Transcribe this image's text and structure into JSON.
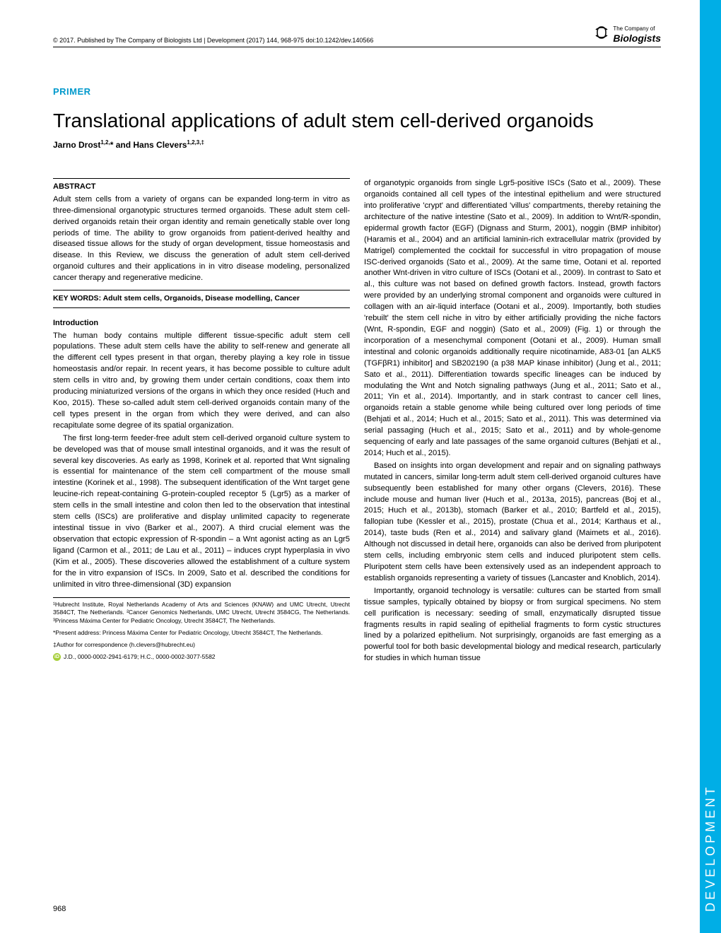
{
  "meta": {
    "copyright": "© 2017. Published by The Company of Biologists Ltd | Development (2017) 144, 968-975 doi:10.1242/dev.140566",
    "logo_small": "The Company of",
    "logo_big": "Biologists",
    "section_label": "PRIMER",
    "title": "Translational applications of adult stem cell-derived organoids",
    "authors_html": "Jarno Drost<sup>1,2,</sup>* and Hans Clevers<sup>1,2,3,‡</sup>",
    "page_number": "968",
    "sidebar_label": "DEVELOPMENT",
    "colors": {
      "accent": "#0099cc",
      "sidebar": "#00aee6",
      "orcid": "#a6ce39"
    }
  },
  "abstract": {
    "heading": "ABSTRACT",
    "body": "Adult stem cells from a variety of organs can be expanded long-term in vitro as three-dimensional organotypic structures termed organoids. These adult stem cell-derived organoids retain their organ identity and remain genetically stable over long periods of time. The ability to grow organoids from patient-derived healthy and diseased tissue allows for the study of organ development, tissue homeostasis and disease. In this Review, we discuss the generation of adult stem cell-derived organoid cultures and their applications in in vitro disease modeling, personalized cancer therapy and regenerative medicine.",
    "keywords_label": "KEY WORDS: Adult stem cells, Organoids, Disease modelling, Cancer"
  },
  "introduction": {
    "heading": "Introduction",
    "p1": "The human body contains multiple different tissue-specific adult stem cell populations. These adult stem cells have the ability to self-renew and generate all the different cell types present in that organ, thereby playing a key role in tissue homeostasis and/or repair. In recent years, it has become possible to culture adult stem cells in vitro and, by growing them under certain conditions, coax them into producing miniaturized versions of the organs in which they once resided (Huch and Koo, 2015). These so-called adult stem cell-derived organoids contain many of the cell types present in the organ from which they were derived, and can also recapitulate some degree of its spatial organization.",
    "p2": "The first long-term feeder-free adult stem cell-derived organoid culture system to be developed was that of mouse small intestinal organoids, and it was the result of several key discoveries. As early as 1998, Korinek et al. reported that Wnt signaling is essential for maintenance of the stem cell compartment of the mouse small intestine (Korinek et al., 1998). The subsequent identification of the Wnt target gene leucine-rich repeat-containing G-protein-coupled receptor 5 (Lgr5) as a marker of stem cells in the small intestine and colon then led to the observation that intestinal stem cells (ISCs) are proliferative and display unlimited capacity to regenerate intestinal tissue in vivo (Barker et al., 2007). A third crucial element was the observation that ectopic expression of R-spondin – a Wnt agonist acting as an Lgr5 ligand (Carmon et al., 2011; de Lau et al., 2011) – induces crypt hyperplasia in vivo (Kim et al., 2005). These discoveries allowed the establishment of a culture system for the in vitro expansion of ISCs. In 2009, Sato et al. described the conditions for unlimited in vitro three-dimensional (3D) expansion"
  },
  "col2": {
    "p1": "of organotypic organoids from single Lgr5-positive ISCs (Sato et al., 2009). These organoids contained all cell types of the intestinal epithelium and were structured into proliferative 'crypt' and differentiated 'villus' compartments, thereby retaining the architecture of the native intestine (Sato et al., 2009). In addition to Wnt/R-spondin, epidermal growth factor (EGF) (Dignass and Sturm, 2001), noggin (BMP inhibitor) (Haramis et al., 2004) and an artificial laminin-rich extracellular matrix (provided by Matrigel) complemented the cocktail for successful in vitro propagation of mouse ISC-derived organoids (Sato et al., 2009). At the same time, Ootani et al. reported another Wnt-driven in vitro culture of ISCs (Ootani et al., 2009). In contrast to Sato et al., this culture was not based on defined growth factors. Instead, growth factors were provided by an underlying stromal component and organoids were cultured in collagen with an air-liquid interface (Ootani et al., 2009). Importantly, both studies 'rebuilt' the stem cell niche in vitro by either artificially providing the niche factors (Wnt, R-spondin, EGF and noggin) (Sato et al., 2009) (Fig. 1) or through the incorporation of a mesenchymal component (Ootani et al., 2009). Human small intestinal and colonic organoids additionally require nicotinamide, A83-01 [an ALK5 (TGFβR1) inhibitor] and SB202190 (a p38 MAP kinase inhibitor) (Jung et al., 2011; Sato et al., 2011). Differentiation towards specific lineages can be induced by modulating the Wnt and Notch signaling pathways (Jung et al., 2011; Sato et al., 2011; Yin et al., 2014). Importantly, and in stark contrast to cancer cell lines, organoids retain a stable genome while being cultured over long periods of time (Behjati et al., 2014; Huch et al., 2015; Sato et al., 2011). This was determined via serial passaging (Huch et al., 2015; Sato et al., 2011) and by whole-genome sequencing of early and late passages of the same organoid cultures (Behjati et al., 2014; Huch et al., 2015).",
    "p2": "Based on insights into organ development and repair and on signaling pathways mutated in cancers, similar long-term adult stem cell-derived organoid cultures have subsequently been established for many other organs (Clevers, 2016). These include mouse and human liver (Huch et al., 2013a, 2015), pancreas (Boj et al., 2015; Huch et al., 2013b), stomach (Barker et al., 2010; Bartfeld et al., 2015), fallopian tube (Kessler et al., 2015), prostate (Chua et al., 2014; Karthaus et al., 2014), taste buds (Ren et al., 2014) and salivary gland (Maimets et al., 2016). Although not discussed in detail here, organoids can also be derived from pluripotent stem cells, including embryonic stem cells and induced pluripotent stem cells. Pluripotent stem cells have been extensively used as an independent approach to establish organoids representing a variety of tissues (Lancaster and Knoblich, 2014).",
    "p3": "Importantly, organoid technology is versatile: cultures can be started from small tissue samples, typically obtained by biopsy or from surgical specimens. No stem cell purification is necessary: seeding of small, enzymatically disrupted tissue fragments results in rapid sealing of epithelial fragments to form cystic structures lined by a polarized epithelium. Not surprisingly, organoids are fast emerging as a powerful tool for both basic developmental biology and medical research, particularly for studies in which human tissue"
  },
  "affiliations": {
    "a1": "¹Hubrecht Institute, Royal Netherlands Academy of Arts and Sciences (KNAW) and UMC Utrecht, Utrecht 3584CT, The Netherlands. ²Cancer Genomics Netherlands, UMC Utrecht, Utrecht 3584CG, The Netherlands. ³Princess Máxima Center for Pediatric Oncology, Utrecht 3584CT, The Netherlands.",
    "a2": "*Present address: Princess Máxima Center for Pediatric Oncology, Utrecht 3584CT, The Netherlands.",
    "a3": "‡Author for correspondence (h.clevers@hubrecht.eu)",
    "orcid": "J.D., 0000-0002-2941-6179; H.C., 0000-0002-3077-5582"
  }
}
